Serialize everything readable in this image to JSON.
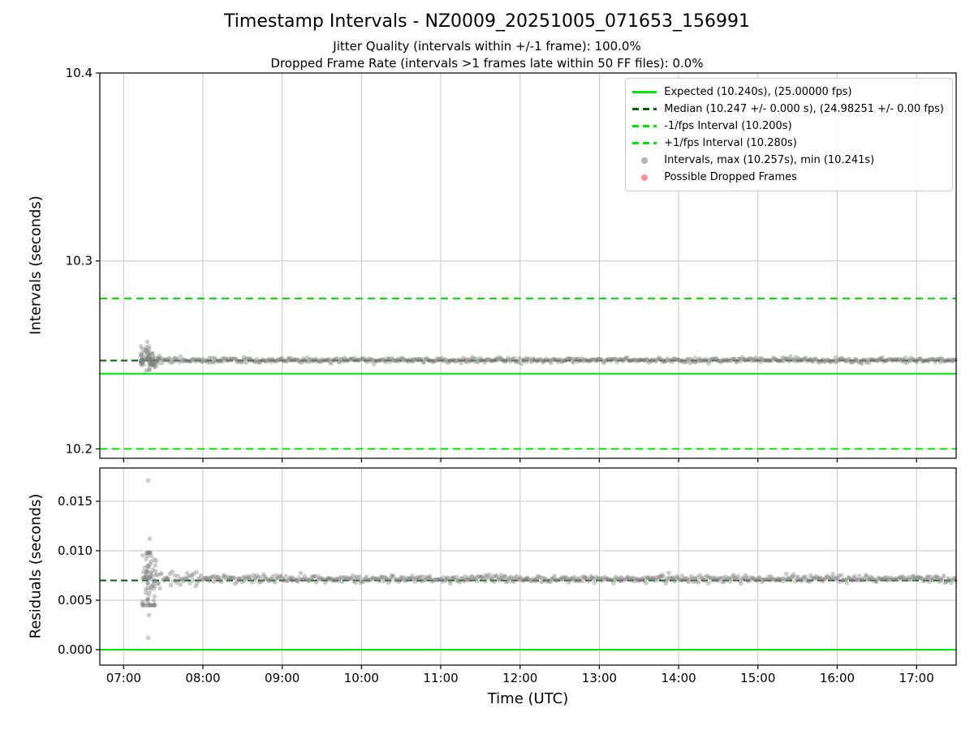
{
  "title": "Timestamp Intervals - NZ0009_20251005_071653_156991",
  "subtitles": {
    "line1": "Jitter Quality (intervals within +/-1 frame): 100.0%",
    "line2": "Dropped Frame Rate (intervals >1 frames late within 50 FF files): 0.0%"
  },
  "colors": {
    "bright_green": "#00e600",
    "dark_green": "#006400",
    "gray": "#808080",
    "red": "#ff4444",
    "grid": "#c8c8c8"
  },
  "stats": {
    "expected_interval_s": 10.24,
    "expected_fps": 25.0,
    "median_interval_s": 10.247,
    "median_interval_err_s": 0.0,
    "median_fps": 24.98251,
    "median_fps_err": 0.0,
    "minus_1fps_interval_s": 10.2,
    "plus_1fps_interval_s": 10.28,
    "max_interval_s": 10.257,
    "min_interval_s": 10.241,
    "jitter_quality_pct": 100.0,
    "dropped_frame_rate_pct": 0.0
  },
  "legend": {
    "items": [
      {
        "label": "Expected (10.240s), (25.00000 fps)",
        "swatch": "line-solid",
        "color_key": "bright_green"
      },
      {
        "label": "Median (10.247 +/- 0.000 s), (24.98251 +/- 0.00 fps)",
        "swatch": "line-dashed",
        "color_key": "dark_green"
      },
      {
        "label": "-1/fps Interval (10.200s)",
        "swatch": "line-dashed",
        "color_key": "bright_green"
      },
      {
        "label": "+1/fps Interval (10.280s)",
        "swatch": "line-dashed",
        "color_key": "bright_green"
      },
      {
        "label": "Intervals, max (10.257s), min (10.241s)",
        "swatch": "marker",
        "color_key": "gray"
      },
      {
        "label": "Possible Dropped Frames",
        "swatch": "marker",
        "color_key": "red"
      }
    ]
  },
  "chart_data": [
    {
      "type": "scatter",
      "ylabel": "Intervals (seconds)",
      "xlabel": "",
      "xlim": [
        6.7,
        17.5
      ],
      "ylim": [
        10.195,
        10.4
      ],
      "x_ticks": [
        7,
        8,
        9,
        10,
        11,
        12,
        13,
        14,
        15,
        16,
        17
      ],
      "x_tick_labels": [
        "07:00",
        "08:00",
        "09:00",
        "10:00",
        "11:00",
        "12:00",
        "13:00",
        "14:00",
        "15:00",
        "16:00",
        "17:00"
      ],
      "y_ticks": [
        10.2,
        10.3,
        10.4
      ],
      "y_tick_labels": [
        "10.2",
        "10.3",
        "10.4"
      ],
      "grid": true,
      "hlines": [
        {
          "name": "minus-1fps-line",
          "y": 10.2,
          "style": "dashed",
          "color_key": "bright_green"
        },
        {
          "name": "plus-1fps-line",
          "y": 10.28,
          "style": "dashed",
          "color_key": "bright_green"
        },
        {
          "name": "expected-line",
          "y": 10.24,
          "style": "solid",
          "color_key": "bright_green"
        },
        {
          "name": "median-line",
          "y": 10.247,
          "style": "dashed",
          "color_key": "dark_green"
        }
      ],
      "series": [
        {
          "name": "Intervals",
          "marker": "dot",
          "color_key": "gray",
          "band": {
            "x_start": 7.3,
            "x_end": 17.5,
            "y_center": 10.2472,
            "y_jitter": 0.00065,
            "taper_scale": 1.2,
            "taper_decay": 0.4,
            "count": 700
          },
          "start_cluster": {
            "x_center": 7.3,
            "x_spread": 0.07,
            "x_min": 7.22,
            "x_max": 7.45,
            "y_center": 10.2475,
            "y_spread": 0.005,
            "y_min": 10.241,
            "y_max": 10.2545,
            "count": 70
          },
          "outliers": [
            [
              7.3,
              10.257
            ],
            [
              7.32,
              10.2545
            ]
          ]
        }
      ]
    },
    {
      "type": "scatter",
      "ylabel": "Residuals (seconds)",
      "xlabel": "Time (UTC)",
      "xlim": [
        6.7,
        17.5
      ],
      "ylim": [
        -0.00156,
        0.01836
      ],
      "x_ticks": [
        7,
        8,
        9,
        10,
        11,
        12,
        13,
        14,
        15,
        16,
        17
      ],
      "x_tick_labels": [
        "07:00",
        "08:00",
        "09:00",
        "10:00",
        "11:00",
        "12:00",
        "13:00",
        "14:00",
        "15:00",
        "16:00",
        "17:00"
      ],
      "y_ticks": [
        0.0,
        0.005,
        0.01,
        0.015
      ],
      "y_tick_labels": [
        "0.000",
        "0.005",
        "0.010",
        "0.015"
      ],
      "grid": true,
      "hlines": [
        {
          "name": "zero-residual-line",
          "y": 0.0,
          "style": "solid",
          "color_key": "bright_green"
        },
        {
          "name": "median-residual-line",
          "y": 0.007,
          "style": "dashed",
          "color_key": "dark_green"
        }
      ],
      "series": [
        {
          "name": "Residuals",
          "marker": "dot",
          "color_key": "gray",
          "band": {
            "x_start": 7.3,
            "x_end": 17.5,
            "y_center": 0.00715,
            "y_jitter": 0.00018,
            "taper_scale": 1.8,
            "taper_decay": 0.5,
            "count": 700
          },
          "start_cluster": {
            "x_center": 7.32,
            "x_spread": 0.06,
            "x_min": 7.24,
            "x_max": 7.45,
            "y_center": 0.0072,
            "y_spread": 0.004,
            "y_min": 0.0045,
            "y_max": 0.0098,
            "count": 70
          },
          "outliers": [
            [
              7.31,
              0.0171
            ],
            [
              7.33,
              0.0112
            ],
            [
              7.3,
              0.0095
            ],
            [
              7.32,
              0.0035
            ],
            [
              7.31,
              0.0012
            ]
          ]
        }
      ]
    }
  ]
}
